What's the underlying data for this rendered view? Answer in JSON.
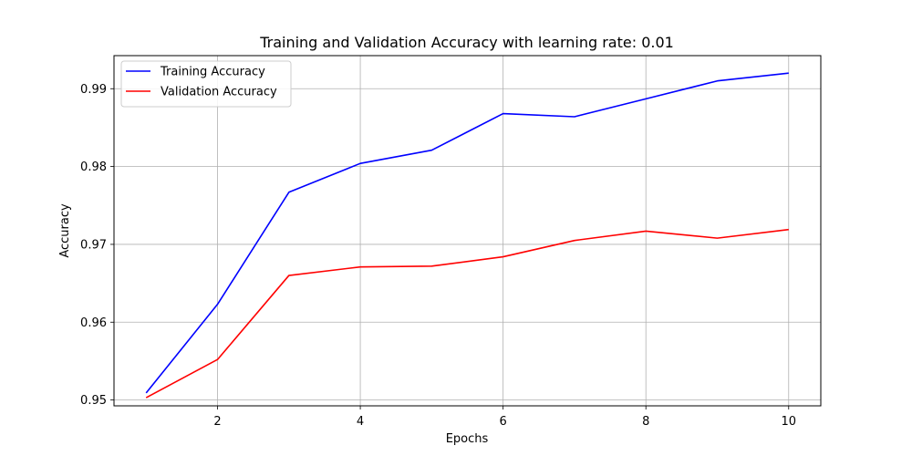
{
  "chart_data": {
    "type": "line",
    "title": "Training and Validation Accuracy with learning rate: 0.01",
    "xlabel": "Epochs",
    "ylabel": "Accuracy",
    "x": [
      1,
      2,
      3,
      4,
      5,
      6,
      7,
      8,
      9,
      10
    ],
    "xlim": [
      0.55,
      10.45
    ],
    "ylim": [
      0.94925,
      0.99425
    ],
    "xticks": [
      2,
      4,
      6,
      8,
      10
    ],
    "yticks": [
      0.95,
      0.96,
      0.97,
      0.98,
      0.99
    ],
    "xtick_labels": [
      "2",
      "4",
      "6",
      "8",
      "10"
    ],
    "ytick_labels": [
      "0.95",
      "0.96",
      "0.97",
      "0.98",
      "0.99"
    ],
    "grid": true,
    "legend_position": "top-left",
    "series": [
      {
        "name": "Training Accuracy",
        "color": "#0000ff",
        "values": [
          0.9509,
          0.9623,
          0.9767,
          0.9804,
          0.9821,
          0.9868,
          0.9864,
          0.9887,
          0.991,
          0.992
        ]
      },
      {
        "name": "Validation Accuracy",
        "color": "#ff0000",
        "values": [
          0.9503,
          0.9552,
          0.966,
          0.9671,
          0.9672,
          0.9684,
          0.9705,
          0.9717,
          0.9708,
          0.9719
        ]
      }
    ]
  }
}
